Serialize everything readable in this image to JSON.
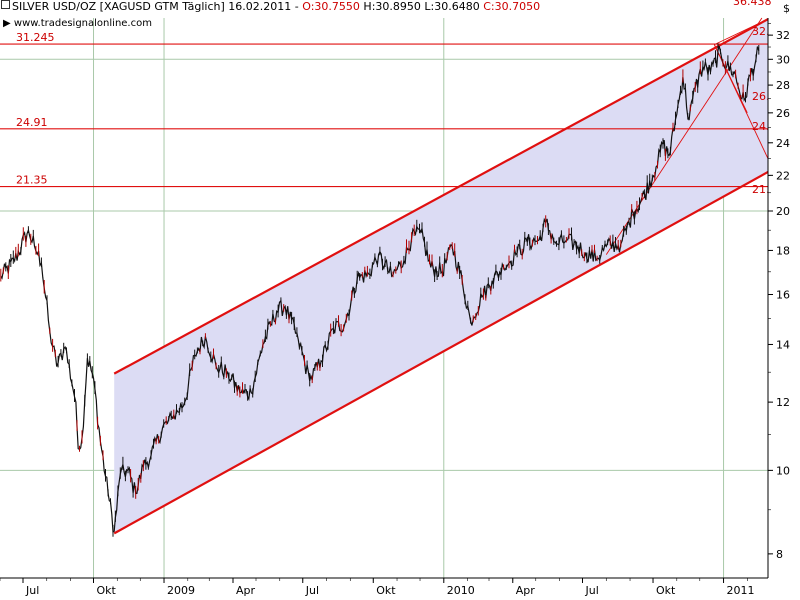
{
  "header": {
    "instrument": "SILVER USD/OZ",
    "symbol": "[XAGUSD GTM",
    "period": "Täglich]",
    "date": "16.02.2011",
    "open": "O:30.7550",
    "high": "H:30.8950",
    "low": "L:30.6480",
    "close": "C:30.7050",
    "currency": "$",
    "source": "www.tradesignalonline.com"
  },
  "chart_data": {
    "type": "line",
    "title": "SILVER USD/OZ [XAGUSD GTM Täglich]",
    "y_scale": "log",
    "ylim": [
      7.5,
      33.5
    ],
    "y_ticks": [
      8,
      10,
      12,
      14,
      16,
      18,
      20,
      22,
      24,
      26,
      28,
      30,
      32
    ],
    "x_range": [
      "2008-06-01",
      "2011-02-28"
    ],
    "x_ticks": [
      {
        "date": "2008-07-01",
        "label": "Jul"
      },
      {
        "date": "2008-10-01",
        "label": "Okt"
      },
      {
        "date": "2009-01-01",
        "label": "2009"
      },
      {
        "date": "2009-04-01",
        "label": "Apr"
      },
      {
        "date": "2009-07-01",
        "label": "Jul"
      },
      {
        "date": "2009-10-01",
        "label": "Okt"
      },
      {
        "date": "2010-01-01",
        "label": "2010"
      },
      {
        "date": "2010-04-01",
        "label": "Apr"
      },
      {
        "date": "2010-07-01",
        "label": "Jul"
      },
      {
        "date": "2010-10-01",
        "label": "Okt"
      },
      {
        "date": "2011-01-01",
        "label": "2011"
      }
    ],
    "grid": {
      "vertical": [
        "2008-10-01",
        "2009-01-01",
        "2010-01-01",
        "2011-01-01"
      ],
      "horizontal": [
        10,
        20,
        30
      ]
    },
    "horizontal_levels": [
      {
        "value": 31.245,
        "label": "31.245"
      },
      {
        "value": 24.91,
        "label": "24.91"
      },
      {
        "value": 21.35,
        "label": "21.35"
      }
    ],
    "channel": {
      "lower": {
        "start": [
          "2008-10-28",
          8.45
        ],
        "end": [
          "2011-02-28",
          22.2
        ]
      },
      "upper": {
        "start": [
          "2008-10-28",
          12.95
        ],
        "end": [
          "2011-02-28",
          33.4
        ]
      },
      "fill": "#dcdcf4"
    },
    "trend_lines": [
      {
        "start": [
          "2010-08-01",
          17.8
        ],
        "end": [
          "2011-02-20",
          33.5
        ]
      },
      {
        "start": [
          "2010-12-20",
          31.2
        ],
        "end": [
          "2011-02-28",
          23.0
        ]
      },
      {
        "start": [
          "2010-12-20",
          31.2
        ],
        "end": [
          "2011-02-28",
          33.4
        ]
      },
      {
        "start": [
          "2010-12-20",
          31.2
        ],
        "end": [
          "2011-02-01",
          26.0
        ]
      }
    ],
    "right_labels": [
      "32.",
      "26.",
      "24.",
      "21.",
      "36.438"
    ],
    "series": [
      {
        "x": [
          "2008-06-02",
          "2008-06-20",
          "2008-07-08",
          "2008-07-16",
          "2008-07-25",
          "2008-08-05",
          "2008-08-14",
          "2008-08-25",
          "2008-09-08",
          "2008-09-11",
          "2008-09-16",
          "2008-09-23",
          "2008-10-01",
          "2008-10-10",
          "2008-10-20",
          "2008-10-28",
          "2008-11-05",
          "2008-11-15",
          "2008-11-25",
          "2008-12-05",
          "2008-12-15",
          "2008-12-30",
          "2009-01-12",
          "2009-01-28",
          "2009-02-10",
          "2009-02-24",
          "2009-03-10",
          "2009-03-25",
          "2009-04-10",
          "2009-04-25",
          "2009-05-10",
          "2009-05-28",
          "2009-06-08",
          "2009-06-25",
          "2009-07-10",
          "2009-07-25",
          "2009-08-10",
          "2009-08-25",
          "2009-09-10",
          "2009-09-25",
          "2009-10-08",
          "2009-10-25",
          "2009-11-10",
          "2009-11-20",
          "2009-12-02",
          "2009-12-15",
          "2009-12-30",
          "2010-01-12",
          "2010-01-25",
          "2010-02-05",
          "2010-02-20",
          "2010-03-05",
          "2010-03-20",
          "2010-04-05",
          "2010-04-20",
          "2010-05-05",
          "2010-05-14",
          "2010-05-28",
          "2010-06-10",
          "2010-06-25",
          "2010-07-05",
          "2010-07-20",
          "2010-08-01",
          "2010-08-20",
          "2010-09-05",
          "2010-09-20",
          "2010-10-05",
          "2010-10-14",
          "2010-10-22",
          "2010-11-01",
          "2010-11-09",
          "2010-11-17",
          "2010-11-25",
          "2010-12-05",
          "2010-12-15",
          "2010-12-28",
          "2011-01-05",
          "2011-01-15",
          "2011-01-25",
          "2011-01-28",
          "2011-02-05",
          "2011-02-16"
        ],
        "values": [
          16.8,
          17.5,
          19.0,
          18.2,
          17.4,
          14.5,
          13.2,
          13.9,
          12.0,
          10.6,
          10.9,
          13.5,
          12.8,
          10.8,
          9.4,
          8.5,
          9.9,
          10.0,
          9.4,
          10.1,
          10.4,
          11.2,
          11.5,
          12.0,
          13.6,
          14.3,
          13.2,
          13.0,
          12.3,
          12.3,
          14.0,
          15.3,
          15.5,
          14.2,
          12.7,
          13.4,
          14.6,
          14.8,
          16.7,
          16.9,
          17.8,
          16.8,
          17.5,
          18.6,
          18.9,
          17.2,
          17.0,
          18.2,
          16.6,
          14.9,
          15.9,
          16.6,
          17.2,
          17.8,
          18.4,
          18.5,
          19.4,
          18.3,
          18.5,
          18.2,
          17.9,
          17.6,
          18.2,
          18.3,
          19.9,
          20.9,
          22.5,
          23.9,
          23.2,
          25.9,
          28.6,
          25.5,
          27.8,
          29.4,
          29.0,
          30.6,
          29.4,
          29.0,
          27.0,
          26.9,
          28.7,
          30.7
        ]
      }
    ]
  }
}
